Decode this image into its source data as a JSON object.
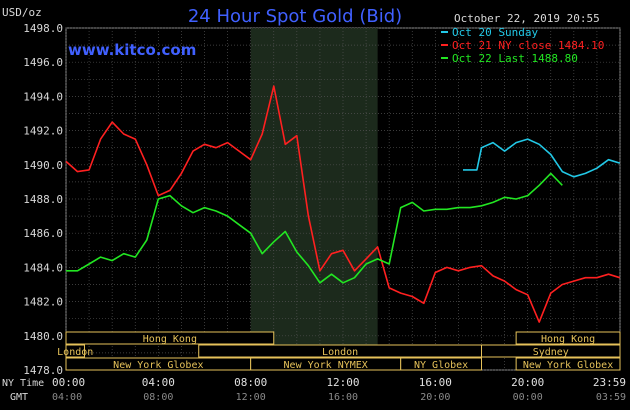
{
  "header": {
    "y_unit": "USD/oz",
    "title": "24 Hour Spot Gold (Bid)",
    "date": "October 22, 2019 20:55",
    "website": "www.kitco.com"
  },
  "legend": [
    {
      "label": "Oct 20 Sunday",
      "color": "#22c8e6"
    },
    {
      "label": "Oct 21 NY close 1484.10",
      "color": "#ff2020"
    },
    {
      "label": "Oct 22 Last 1488.80",
      "color": "#22e622"
    }
  ],
  "sessions": [
    {
      "label": "Hong Kong",
      "row": 0,
      "start": 0.0,
      "end": 9.0
    },
    {
      "label": "Hong Kong",
      "row": 0,
      "start": 19.5,
      "end": 24.0
    },
    {
      "label": "London",
      "row": 1,
      "start": 0.0,
      "end": 0.8
    },
    {
      "label": "London",
      "row": 1,
      "start": 5.75,
      "end": 18.0
    },
    {
      "label": "Sydney",
      "row": 1,
      "start": 18.0,
      "end": 24.0
    },
    {
      "label": "New York Globex",
      "row": 2,
      "start": 0.0,
      "end": 8.0
    },
    {
      "label": "New York NYMEX",
      "row": 2,
      "start": 8.0,
      "end": 14.5
    },
    {
      "label": "NY Globex",
      "row": 2,
      "start": 14.5,
      "end": 18.0
    },
    {
      "label": "New York Globex",
      "row": 2,
      "start": 19.5,
      "end": 24.0
    }
  ],
  "time_axis": {
    "ny_label": "NY Time",
    "gmt_label": "GMT",
    "ny_ticks": [
      "00:00",
      "04:00",
      "08:00",
      "12:00",
      "16:00",
      "20:00",
      "23:59"
    ],
    "gmt_ticks": [
      "04:00",
      "08:00",
      "12:00",
      "16:00",
      "20:00",
      "00:00",
      "03:59"
    ]
  },
  "chart_data": {
    "type": "line",
    "title": "24 Hour Spot Gold (Bid)",
    "ylabel": "USD/oz",
    "ylim": [
      1478,
      1498
    ],
    "xlim": [
      0,
      24
    ],
    "yticks": [
      "1478.0",
      "1480.0",
      "1482.0",
      "1484.0",
      "1486.0",
      "1488.0",
      "1490.0",
      "1492.0",
      "1494.0",
      "1496.0",
      "1498.0"
    ],
    "grid": true,
    "legend_position": "top-right",
    "highlight_range": [
      8.0,
      13.5
    ],
    "series": [
      {
        "name": "Oct 20 Sunday",
        "color": "#22c8e6",
        "x": [
          17.2,
          17.5,
          17.5,
          17.8,
          18.0,
          18.5,
          19.0,
          19.5,
          20.0,
          20.5,
          21.0,
          21.5,
          22.0,
          22.5,
          23.0,
          23.5,
          23.99
        ],
        "y": [
          1489.7,
          1489.7,
          1489.7,
          1489.7,
          1491.0,
          1491.3,
          1490.8,
          1491.3,
          1491.5,
          1491.2,
          1490.6,
          1489.6,
          1489.3,
          1489.5,
          1489.8,
          1490.3,
          1490.1
        ]
      },
      {
        "name": "Oct 21 NY close 1484.10",
        "color": "#ff2020",
        "x": [
          0,
          0.5,
          1.0,
          1.5,
          2.0,
          2.5,
          3.0,
          3.5,
          4.0,
          4.5,
          5.0,
          5.5,
          6.0,
          6.5,
          7.0,
          7.5,
          8.0,
          8.5,
          9.0,
          9.5,
          10.0,
          10.5,
          11.0,
          11.5,
          12.0,
          12.5,
          13.0,
          13.5,
          14.0,
          14.5,
          15.0,
          15.5,
          16.0,
          16.5,
          17.0,
          17.5,
          18.0,
          18.5,
          19.0,
          19.5,
          20.0,
          20.5,
          21.0,
          21.5,
          22.0,
          22.5,
          23.0,
          23.5,
          23.99
        ],
        "y": [
          1490.2,
          1489.6,
          1489.7,
          1491.5,
          1492.5,
          1491.8,
          1491.5,
          1490.0,
          1488.2,
          1488.5,
          1489.5,
          1490.8,
          1491.2,
          1491.0,
          1491.3,
          1490.8,
          1490.3,
          1491.8,
          1494.6,
          1491.2,
          1491.7,
          1487.0,
          1483.8,
          1484.8,
          1485.0,
          1483.8,
          1484.5,
          1485.2,
          1482.8,
          1482.5,
          1482.3,
          1481.9,
          1483.7,
          1484.0,
          1483.8,
          1484.0,
          1484.1,
          1483.5,
          1483.2,
          1482.7,
          1482.4,
          1480.8,
          1482.5,
          1483.0,
          1483.2,
          1483.4,
          1483.4,
          1483.6,
          1483.4
        ]
      },
      {
        "name": "Oct 22 Last 1488.80",
        "color": "#22e622",
        "x": [
          0,
          0.5,
          1.0,
          1.5,
          2.0,
          2.5,
          3.0,
          3.5,
          4.0,
          4.5,
          5.0,
          5.5,
          6.0,
          6.5,
          7.0,
          7.5,
          8.0,
          8.5,
          9.0,
          9.5,
          10.0,
          10.5,
          11.0,
          11.5,
          12.0,
          12.5,
          13.0,
          13.5,
          14.0,
          14.5,
          15.0,
          15.5,
          16.0,
          16.5,
          17.0,
          17.5,
          18.0,
          18.5,
          19.0,
          19.5,
          20.0,
          20.5,
          21.0,
          21.5
        ],
        "y": [
          1483.8,
          1483.8,
          1484.2,
          1484.6,
          1484.4,
          1484.8,
          1484.6,
          1485.6,
          1488.0,
          1488.2,
          1487.6,
          1487.2,
          1487.5,
          1487.3,
          1487.0,
          1486.5,
          1486.0,
          1484.8,
          1485.5,
          1486.1,
          1484.9,
          1484.1,
          1483.1,
          1483.6,
          1483.1,
          1483.4,
          1484.2,
          1484.5,
          1484.2,
          1487.5,
          1487.8,
          1487.3,
          1487.4,
          1487.4,
          1487.5,
          1487.5,
          1487.6,
          1487.8,
          1488.1,
          1488.0,
          1488.2,
          1488.8,
          1489.5,
          1488.8
        ]
      }
    ]
  }
}
